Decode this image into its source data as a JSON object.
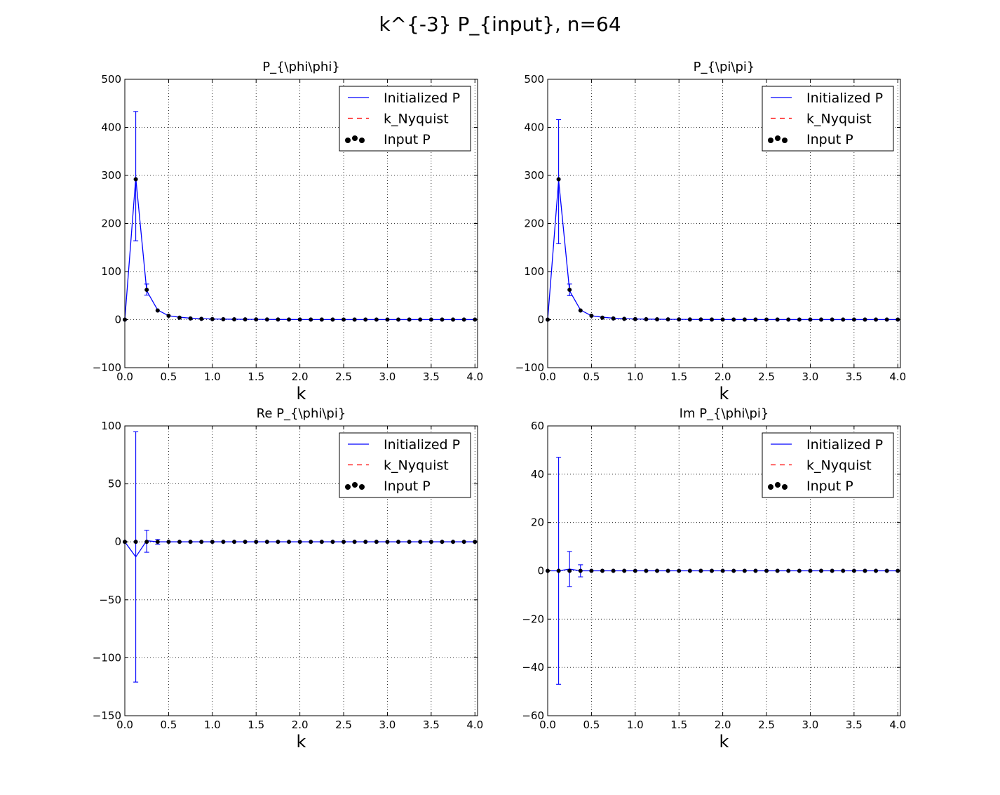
{
  "figure": {
    "suptitle": "k^{-3} P_{input}, n=64"
  },
  "chart_data": [
    {
      "type": "line",
      "title": "P_{\\phi\\phi}",
      "xlabel": "k",
      "ylabel": "",
      "xlim": [
        0,
        4.03
      ],
      "ylim": [
        -100,
        500
      ],
      "xticks": [
        0.0,
        0.5,
        1.0,
        1.5,
        2.0,
        2.5,
        3.0,
        3.5,
        4.0
      ],
      "yticks": [
        -100,
        0,
        100,
        200,
        300,
        400,
        500
      ],
      "grid": true,
      "legend": {
        "placement": "top-right",
        "entries": [
          "Initialized P",
          "k_Nyquist",
          "Input P"
        ]
      },
      "series": [
        {
          "name": "Initialized P",
          "style": "line-errorbar",
          "x": [
            0,
            0.125,
            0.25,
            0.375,
            0.5,
            0.625,
            0.75,
            0.875,
            1.0,
            1.125,
            1.25,
            1.375,
            1.5,
            1.625,
            1.75,
            1.875,
            2.0,
            2.125,
            2.25,
            2.375,
            2.5,
            2.625,
            2.75,
            2.875,
            3.0,
            3.125,
            3.25,
            3.375,
            3.5,
            3.625,
            3.75,
            3.875,
            4.0
          ],
          "y": [
            0,
            295,
            60,
            20,
            8,
            5,
            3,
            2,
            1.3,
            1,
            0.8,
            0.6,
            0.5,
            0.4,
            0.3,
            0.3,
            0.2,
            0.2,
            0.2,
            0.2,
            0.1,
            0.1,
            0.1,
            0.1,
            0.1,
            0.1,
            0.1,
            0.1,
            0.1,
            0.1,
            0.1,
            0.1,
            0.1
          ],
          "yerr": [
            [
              0.125,
              164,
              433
            ],
            [
              0.25,
              51,
              74
            ]
          ]
        },
        {
          "name": "k_Nyquist",
          "style": "dashed"
        },
        {
          "name": "Input P",
          "style": "dots",
          "x": [
            0,
            0.125,
            0.25,
            0.375,
            0.5,
            0.625,
            0.75,
            0.875,
            1.0,
            1.125,
            1.25,
            1.375,
            1.5,
            1.625,
            1.75,
            1.875,
            2.0,
            2.125,
            2.25,
            2.375,
            2.5,
            2.625,
            2.75,
            2.875,
            3.0,
            3.125,
            3.25,
            3.375,
            3.5,
            3.625,
            3.75,
            3.875,
            4.0
          ],
          "y": [
            0,
            292,
            62,
            19,
            8,
            4,
            2.4,
            1.6,
            1.1,
            0.8,
            0.6,
            0.5,
            0.4,
            0.3,
            0.25,
            0.2,
            0.2,
            0.15,
            0.15,
            0.12,
            0.1,
            0.1,
            0.1,
            0.1,
            0.1,
            0.1,
            0.1,
            0.1,
            0.1,
            0.1,
            0.1,
            0.1,
            0.1
          ]
        }
      ]
    },
    {
      "type": "line",
      "title": "P_{\\pi\\pi}",
      "xlabel": "k",
      "ylabel": "",
      "xlim": [
        0,
        4.03
      ],
      "ylim": [
        -100,
        500
      ],
      "xticks": [
        0.0,
        0.5,
        1.0,
        1.5,
        2.0,
        2.5,
        3.0,
        3.5,
        4.0
      ],
      "yticks": [
        -100,
        0,
        100,
        200,
        300,
        400,
        500
      ],
      "grid": true,
      "legend": {
        "placement": "top-right",
        "entries": [
          "Initialized P",
          "k_Nyquist",
          "Input P"
        ]
      },
      "series": [
        {
          "name": "Initialized P",
          "style": "line-errorbar",
          "x": [
            0,
            0.125,
            0.25,
            0.375,
            0.5,
            0.625,
            0.75,
            0.875,
            1.0,
            1.125,
            1.25,
            1.375,
            1.5,
            1.625,
            1.75,
            1.875,
            2.0,
            2.125,
            2.25,
            2.375,
            2.5,
            2.625,
            2.75,
            2.875,
            3.0,
            3.125,
            3.25,
            3.375,
            3.5,
            3.625,
            3.75,
            3.875,
            4.0
          ],
          "y": [
            0,
            290,
            60,
            20,
            8,
            5,
            3,
            2,
            1.3,
            1,
            0.8,
            0.6,
            0.5,
            0.4,
            0.3,
            0.3,
            0.2,
            0.2,
            0.2,
            0.2,
            0.1,
            0.1,
            0.1,
            0.1,
            0.1,
            0.1,
            0.1,
            0.1,
            0.1,
            0.1,
            0.1,
            0.1,
            0.1
          ],
          "yerr": [
            [
              0.125,
              158,
              416
            ],
            [
              0.25,
              50,
              74
            ]
          ]
        },
        {
          "name": "k_Nyquist",
          "style": "dashed"
        },
        {
          "name": "Input P",
          "style": "dots",
          "x": [
            0,
            0.125,
            0.25,
            0.375,
            0.5,
            0.625,
            0.75,
            0.875,
            1.0,
            1.125,
            1.25,
            1.375,
            1.5,
            1.625,
            1.75,
            1.875,
            2.0,
            2.125,
            2.25,
            2.375,
            2.5,
            2.625,
            2.75,
            2.875,
            3.0,
            3.125,
            3.25,
            3.375,
            3.5,
            3.625,
            3.75,
            3.875,
            4.0
          ],
          "y": [
            0,
            292,
            62,
            19,
            8,
            4,
            2.4,
            1.6,
            1.1,
            0.8,
            0.6,
            0.5,
            0.4,
            0.3,
            0.25,
            0.2,
            0.2,
            0.15,
            0.15,
            0.12,
            0.1,
            0.1,
            0.1,
            0.1,
            0.1,
            0.1,
            0.1,
            0.1,
            0.1,
            0.1,
            0.1,
            0.1,
            0.1
          ]
        }
      ]
    },
    {
      "type": "line",
      "title": "Re P_{\\phi\\pi}",
      "xlabel": "k",
      "ylabel": "",
      "xlim": [
        0,
        4.03
      ],
      "ylim": [
        -150,
        100
      ],
      "xticks": [
        0.0,
        0.5,
        1.0,
        1.5,
        2.0,
        2.5,
        3.0,
        3.5,
        4.0
      ],
      "yticks": [
        -150,
        -100,
        -50,
        0,
        50,
        100
      ],
      "grid": true,
      "legend": {
        "placement": "top-right",
        "entries": [
          "Initialized P",
          "k_Nyquist",
          "Input P"
        ]
      },
      "series": [
        {
          "name": "Initialized P",
          "style": "line-errorbar",
          "x": [
            0,
            0.125,
            0.25,
            0.375,
            0.5,
            0.625,
            0.75,
            0.875,
            1.0,
            1.125,
            1.25,
            1.375,
            1.5,
            1.625,
            1.75,
            1.875,
            2.0,
            2.125,
            2.25,
            2.375,
            2.5,
            2.625,
            2.75,
            2.875,
            3.0,
            3.125,
            3.25,
            3.375,
            3.5,
            3.625,
            3.75,
            3.875,
            4.0
          ],
          "y": [
            0,
            -13,
            1,
            0,
            0,
            0,
            0,
            0,
            0,
            0,
            0,
            0,
            0,
            0,
            0,
            0,
            0,
            0,
            0,
            0,
            0,
            0,
            0,
            0,
            0,
            0,
            0,
            0,
            0,
            0,
            0,
            0,
            0
          ],
          "yerr": [
            [
              0.125,
              -121,
              95
            ],
            [
              0.25,
              -9,
              10
            ],
            [
              0.375,
              -2,
              2
            ]
          ]
        },
        {
          "name": "k_Nyquist",
          "style": "dashed"
        },
        {
          "name": "Input P",
          "style": "dots",
          "x": [
            0,
            0.125,
            0.25,
            0.375,
            0.5,
            0.625,
            0.75,
            0.875,
            1.0,
            1.125,
            1.25,
            1.375,
            1.5,
            1.625,
            1.75,
            1.875,
            2.0,
            2.125,
            2.25,
            2.375,
            2.5,
            2.625,
            2.75,
            2.875,
            3.0,
            3.125,
            3.25,
            3.375,
            3.5,
            3.625,
            3.75,
            3.875,
            4.0
          ],
          "y": [
            0,
            0,
            0,
            0,
            0,
            0,
            0,
            0,
            0,
            0,
            0,
            0,
            0,
            0,
            0,
            0,
            0,
            0,
            0,
            0,
            0,
            0,
            0,
            0,
            0,
            0,
            0,
            0,
            0,
            0,
            0,
            0,
            0
          ]
        }
      ]
    },
    {
      "type": "line",
      "title": "Im P_{\\phi\\pi}",
      "xlabel": "k",
      "ylabel": "",
      "xlim": [
        0,
        4.03
      ],
      "ylim": [
        -60,
        60
      ],
      "xticks": [
        0.0,
        0.5,
        1.0,
        1.5,
        2.0,
        2.5,
        3.0,
        3.5,
        4.0
      ],
      "yticks": [
        -60,
        -40,
        -20,
        0,
        20,
        40,
        60
      ],
      "grid": true,
      "legend": {
        "placement": "top-right",
        "entries": [
          "Initialized P",
          "k_Nyquist",
          "Input P"
        ]
      },
      "series": [
        {
          "name": "Initialized P",
          "style": "line-errorbar",
          "x": [
            0,
            0.125,
            0.25,
            0.375,
            0.5,
            0.625,
            0.75,
            0.875,
            1.0,
            1.125,
            1.25,
            1.375,
            1.5,
            1.625,
            1.75,
            1.875,
            2.0,
            2.125,
            2.25,
            2.375,
            2.5,
            2.625,
            2.75,
            2.875,
            3.0,
            3.125,
            3.25,
            3.375,
            3.5,
            3.625,
            3.75,
            3.875,
            4.0
          ],
          "y": [
            0,
            0,
            0.7,
            0,
            0,
            0,
            0,
            0,
            0,
            0,
            0,
            0,
            0,
            0,
            0,
            0,
            0,
            0,
            0,
            0,
            0,
            0,
            0,
            0,
            0,
            0,
            0,
            0,
            0,
            0,
            0,
            0,
            0
          ],
          "yerr": [
            [
              0.125,
              -47,
              47
            ],
            [
              0.25,
              -6.5,
              8
            ],
            [
              0.375,
              -2.5,
              2.5
            ]
          ]
        },
        {
          "name": "k_Nyquist",
          "style": "dashed"
        },
        {
          "name": "Input P",
          "style": "dots",
          "x": [
            0,
            0.125,
            0.25,
            0.375,
            0.5,
            0.625,
            0.75,
            0.875,
            1.0,
            1.125,
            1.25,
            1.375,
            1.5,
            1.625,
            1.75,
            1.875,
            2.0,
            2.125,
            2.25,
            2.375,
            2.5,
            2.625,
            2.75,
            2.875,
            3.0,
            3.125,
            3.25,
            3.375,
            3.5,
            3.625,
            3.75,
            3.875,
            4.0
          ],
          "y": [
            0,
            0,
            0,
            0,
            0,
            0,
            0,
            0,
            0,
            0,
            0,
            0,
            0,
            0,
            0,
            0,
            0,
            0,
            0,
            0,
            0,
            0,
            0,
            0,
            0,
            0,
            0,
            0,
            0,
            0,
            0,
            0,
            0
          ]
        }
      ]
    }
  ],
  "colors": {
    "line": "#0000ff",
    "nyquist": "#ff0000",
    "dots": "#000000",
    "grid": "#000000"
  }
}
